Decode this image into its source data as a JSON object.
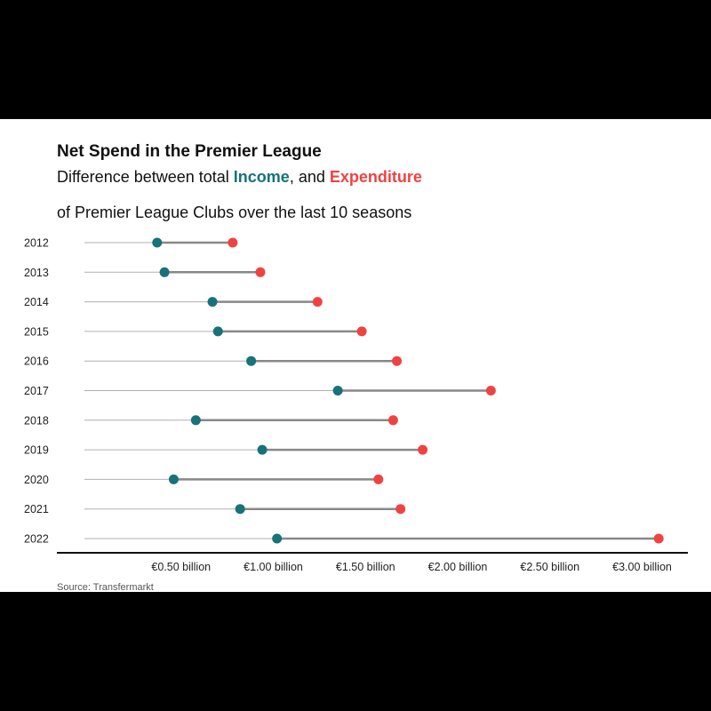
{
  "title": "Net Spend in the Premier League",
  "subtitle": {
    "line1_prefix": "Difference between total ",
    "income_label": "Income",
    "line1_mid": ", and ",
    "expenditure_label": "Expenditure",
    "line2": "of Premier League Clubs over the last 10 seasons"
  },
  "source": "Source: Transfermarkt",
  "colors": {
    "income": "#17727a",
    "expenditure": "#ef4342",
    "segment": "#888888",
    "guide": "#b0b0b0",
    "axis": "#111111"
  },
  "chart_data": {
    "type": "dumbbell",
    "x_unit": "billion EUR",
    "xlim": [
      0.1,
      3.2
    ],
    "x_ticks": [
      0.5,
      1.0,
      1.5,
      2.0,
      2.5,
      3.0
    ],
    "x_tick_labels": [
      "€0.50 billion",
      "€1.00 billion",
      "€1.50 billion",
      "€2.00 billion",
      "€2.50 billion",
      "€3.00 billion"
    ],
    "categories": [
      "2012",
      "2013",
      "2014",
      "2015",
      "2016",
      "2017",
      "2018",
      "2019",
      "2020",
      "2021",
      "2022"
    ],
    "series": [
      {
        "name": "Income",
        "values": [
          0.37,
          0.41,
          0.67,
          0.7,
          0.88,
          1.35,
          0.58,
          0.94,
          0.46,
          0.82,
          1.02
        ]
      },
      {
        "name": "Expenditure",
        "values": [
          0.78,
          0.93,
          1.24,
          1.48,
          1.67,
          2.18,
          1.65,
          1.81,
          1.57,
          1.69,
          3.09
        ]
      }
    ],
    "grid": false,
    "legend": "none"
  }
}
